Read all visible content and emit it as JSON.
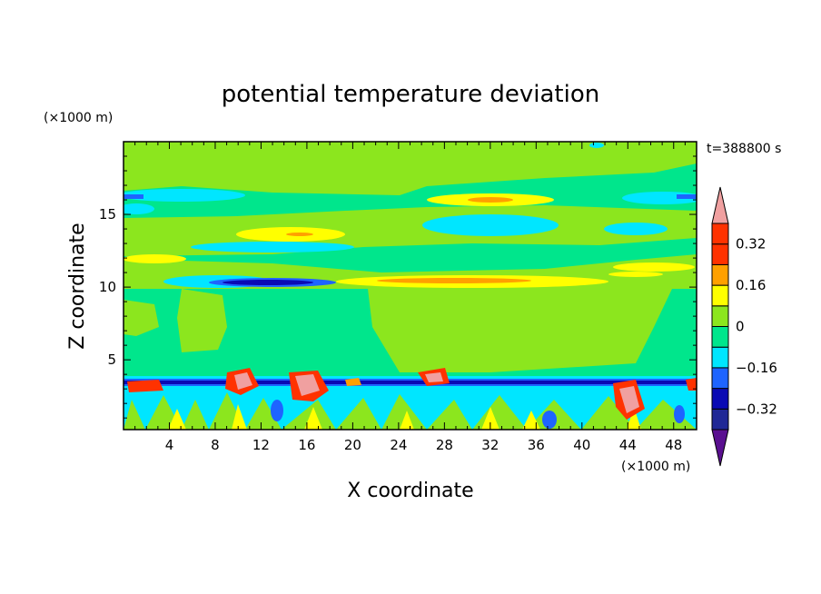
{
  "chart_data": {
    "type": "heatmap",
    "title": "potential temperature deviation",
    "xlabel": "X coordinate",
    "ylabel": "Z coordinate",
    "x_unit": "(×1000 m)",
    "y_unit": "(×1000 m)",
    "time_label": "t=388800 s",
    "xlim": [
      0,
      50
    ],
    "ylim": [
      0.2,
      20
    ],
    "x_ticks": [
      4,
      8,
      12,
      16,
      20,
      24,
      28,
      32,
      36,
      40,
      44,
      48
    ],
    "y_ticks": [
      5,
      10,
      15
    ],
    "colorbar": {
      "levels": [
        -0.4,
        -0.32,
        -0.24,
        -0.16,
        -0.08,
        0,
        0.08,
        0.16,
        0.24,
        0.32,
        0.4
      ],
      "labels": [
        "0.32",
        "0.16",
        "0",
        "−0.16",
        "−0.32"
      ],
      "label_values": [
        0.32,
        0.16,
        0,
        -0.16,
        -0.32
      ],
      "colors": [
        "#5a1090",
        "#202896",
        "#0a0ab4",
        "#1e64ff",
        "#00e6ff",
        "#00e68c",
        "#8ce61e",
        "#ffff00",
        "#ffa000",
        "#ff3200",
        "#f0a0a0"
      ]
    }
  },
  "colors": {
    "background": "#00e68c"
  }
}
